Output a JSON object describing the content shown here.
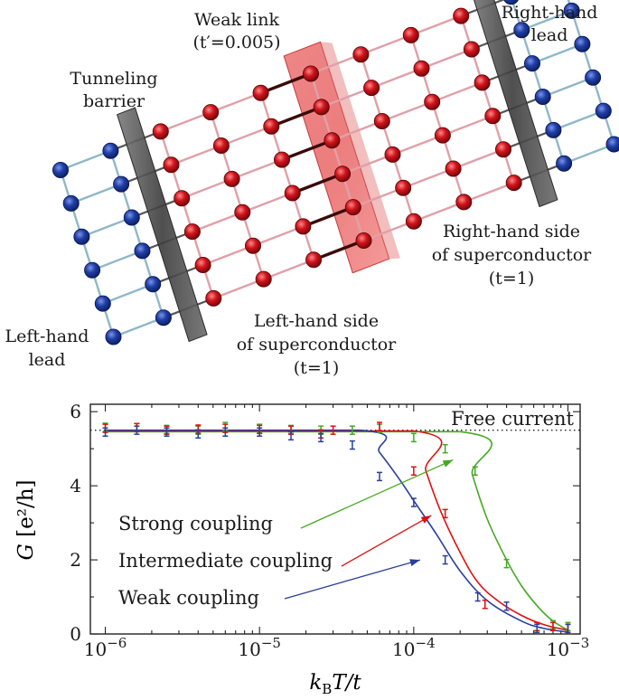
{
  "diagram": {
    "labels": {
      "weak_link_1": "Weak link",
      "weak_link_2": "(t′=0.005)",
      "right_lead_1": "Right-hand",
      "right_lead_2": "lead",
      "tunneling_1": "Tunneling",
      "tunneling_2": "barrier",
      "left_lead_1": "Left-hand",
      "left_lead_2": "lead",
      "left_sc_1": "Left-hand side",
      "left_sc_2": "of superconductor",
      "left_sc_3": "(t=1)",
      "right_sc_1": "Right-hand side",
      "right_sc_2": "of superconductor",
      "right_sc_3": "(t=1)"
    },
    "colors": {
      "lead_site": "#1f3fa8",
      "sc_site": "#d0141c",
      "lead_bond": "#8fb8c8",
      "sc_bond": "#e0a0a8",
      "barrier": "#5a5a5a",
      "weak_link": "#e03030"
    }
  },
  "chart_data": {
    "type": "line",
    "xscale": "log",
    "xlim": [
      8e-07,
      0.0012
    ],
    "ylim": [
      0,
      6.2
    ],
    "xlabel": "kBT/t",
    "ylabel": "G [e²/h]",
    "xticks": [
      "10−6",
      "10−5",
      "10−4",
      "10−3"
    ],
    "yticks": [
      "0",
      "2",
      "4",
      "6"
    ],
    "reference_line": {
      "label": "Free current",
      "y": 5.5,
      "style": "dotted"
    },
    "series": [
      {
        "name": "Strong coupling",
        "color": "#44aa22",
        "curve_x": [
          1e-06,
          0.0002,
          0.00024,
          0.0003,
          0.0004,
          0.0005,
          0.00065,
          0.0008,
          0.001
        ],
        "curve_y": [
          5.46,
          5.46,
          4.3,
          3.1,
          2.0,
          1.3,
          0.7,
          0.35,
          0.1
        ],
        "points_x": [
          1e-06,
          1.6e-06,
          2.5e-06,
          4e-06,
          6e-06,
          1e-05,
          1.6e-05,
          2.5e-05,
          4e-05,
          6e-05,
          0.0001,
          0.00016,
          0.00025,
          0.0004,
          0.00063,
          0.0008,
          0.001
        ],
        "points_y": [
          5.58,
          5.57,
          5.52,
          5.5,
          5.6,
          5.55,
          5.52,
          5.5,
          5.5,
          5.55,
          5.3,
          5.0,
          4.4,
          1.9,
          0.2,
          0.25,
          0.2
        ]
      },
      {
        "name": "Intermediate coupling",
        "color": "#dd1111",
        "curve_x": [
          1e-06,
          0.0001,
          0.00012,
          0.00015,
          0.0002,
          0.00026,
          0.00035,
          0.0005,
          0.0007,
          0.001
        ],
        "curve_y": [
          5.48,
          5.48,
          4.4,
          3.3,
          2.2,
          1.4,
          0.9,
          0.5,
          0.25,
          0.1
        ],
        "points_x": [
          1e-06,
          1.6e-06,
          2.5e-06,
          4e-06,
          6e-06,
          1e-05,
          1.6e-05,
          2.5e-05,
          3e-05,
          6e-05,
          0.0001,
          0.00016,
          0.00029,
          0.00063,
          0.0008,
          0.001
        ],
        "points_y": [
          5.55,
          5.57,
          5.5,
          5.53,
          5.55,
          5.52,
          5.5,
          5.4,
          5.5,
          5.6,
          4.4,
          3.25,
          0.8,
          0.2,
          0.2,
          0.15
        ]
      },
      {
        "name": "Weak coupling",
        "color": "#2a3f9a",
        "curve_x": [
          1e-06,
          4.5e-05,
          6e-05,
          8e-05,
          0.0001,
          0.00014,
          0.0002,
          0.0003,
          0.0005,
          0.0007,
          0.001
        ],
        "curve_y": [
          5.5,
          5.5,
          4.9,
          4.2,
          3.6,
          2.7,
          1.7,
          0.9,
          0.35,
          0.15,
          0.05
        ],
        "points_x": [
          1e-06,
          1.6e-06,
          2.5e-06,
          4e-06,
          6e-06,
          1e-05,
          1.6e-05,
          2.5e-05,
          4e-05,
          6e-05,
          0.0001,
          0.00016,
          0.00026,
          0.0004,
          0.00063,
          0.001
        ],
        "points_y": [
          5.45,
          5.5,
          5.45,
          5.4,
          5.45,
          5.45,
          5.35,
          5.3,
          5.1,
          4.25,
          3.55,
          2.0,
          1.0,
          0.75,
          0.15,
          0.15
        ]
      }
    ],
    "annotations": [
      {
        "text": "Strong coupling",
        "series": 0,
        "arrow_to": [
          0.00018,
          4.7
        ]
      },
      {
        "text": "Intermediate coupling",
        "series": 1,
        "arrow_to": [
          0.00013,
          3.2
        ]
      },
      {
        "text": "Weak coupling",
        "series": 2,
        "arrow_to": [
          0.00011,
          2.0
        ]
      }
    ]
  }
}
